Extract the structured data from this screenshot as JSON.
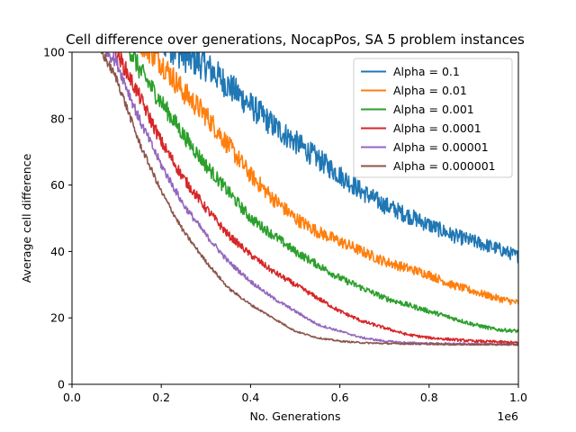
{
  "chart_data": {
    "type": "line",
    "title": "Cell difference over generations, NocapPos, SA 5 problem instances",
    "xlabel": "No. Generations",
    "ylabel": "Average cell difference",
    "x_offset_label": "1e6",
    "xlim": [
      0,
      1.0
    ],
    "ylim": [
      0,
      100
    ],
    "xticks": [
      0.0,
      0.2,
      0.4,
      0.6,
      0.8,
      1.0
    ],
    "xtick_labels": [
      "0.0",
      "0.2",
      "0.4",
      "0.6",
      "0.8",
      "1.0"
    ],
    "yticks": [
      0,
      20,
      40,
      60,
      80,
      100
    ],
    "ytick_labels": [
      "0",
      "20",
      "40",
      "60",
      "80",
      "100"
    ],
    "grid": false,
    "legend_position": "top-right",
    "series": [
      {
        "name": "Alpha = 0.1",
        "color": "#1f77b4",
        "x": [
          0.15,
          0.2,
          0.25,
          0.3,
          0.35,
          0.4,
          0.45,
          0.5,
          0.55,
          0.6,
          0.65,
          0.7,
          0.75,
          0.8,
          0.85,
          0.9,
          0.95,
          1.0
        ],
        "y": [
          112,
          104,
          99,
          96,
          90,
          84,
          78,
          73,
          68,
          63,
          58,
          54,
          51,
          48,
          45,
          43,
          41,
          38.5
        ],
        "noise": 3
      },
      {
        "name": "Alpha = 0.01",
        "color": "#ff7f0e",
        "x": [
          0.1,
          0.15,
          0.2,
          0.25,
          0.3,
          0.35,
          0.4,
          0.45,
          0.5,
          0.55,
          0.6,
          0.65,
          0.7,
          0.75,
          0.8,
          0.85,
          0.9,
          0.95,
          1.0
        ],
        "y": [
          112,
          104,
          97,
          88,
          81,
          72,
          63,
          56,
          50,
          46,
          43,
          40,
          37,
          35,
          33,
          30,
          28,
          26,
          24.5
        ],
        "noise": 2.5
      },
      {
        "name": "Alpha = 0.001",
        "color": "#2ca02c",
        "x": [
          0.1,
          0.15,
          0.2,
          0.25,
          0.3,
          0.35,
          0.4,
          0.45,
          0.5,
          0.55,
          0.6,
          0.65,
          0.7,
          0.75,
          0.8,
          0.85,
          0.9,
          0.95,
          1.0
        ],
        "y": [
          110,
          95,
          85,
          75,
          66,
          58,
          50,
          45,
          40,
          36,
          32,
          29,
          26,
          24,
          22,
          20,
          18,
          16.5,
          16
        ],
        "noise": 2
      },
      {
        "name": "Alpha = 0.0001",
        "color": "#d62728",
        "x": [
          0.05,
          0.1,
          0.15,
          0.2,
          0.25,
          0.3,
          0.35,
          0.4,
          0.45,
          0.5,
          0.55,
          0.6,
          0.65,
          0.7,
          0.75,
          0.8,
          0.85,
          0.9,
          0.95,
          1.0
        ],
        "y": [
          110,
          100,
          87,
          73,
          62,
          53,
          45,
          39,
          34,
          30,
          26,
          22,
          19,
          17,
          15,
          14,
          13.5,
          13,
          12.8,
          12.5
        ],
        "noise": 1.6
      },
      {
        "name": "Alpha = 0.00001",
        "color": "#9467bd",
        "x": [
          0.05,
          0.1,
          0.15,
          0.2,
          0.25,
          0.3,
          0.35,
          0.4,
          0.45,
          0.5,
          0.55,
          0.6,
          0.65,
          0.7,
          0.75,
          0.8,
          0.85,
          0.9,
          0.95,
          1.0
        ],
        "y": [
          105,
          97,
          80,
          66,
          54,
          45,
          37,
          31,
          26,
          22,
          18,
          16,
          14,
          13,
          12.5,
          12.3,
          12.2,
          12.1,
          12,
          12
        ],
        "noise": 1.2
      },
      {
        "name": "Alpha = 0.000001",
        "color": "#8c564b",
        "x": [
          0.05,
          0.1,
          0.15,
          0.2,
          0.25,
          0.3,
          0.35,
          0.4,
          0.45,
          0.5,
          0.55,
          0.6,
          0.65,
          0.7,
          0.75,
          0.8,
          0.85,
          0.9,
          0.95,
          1.0
        ],
        "y": [
          104,
          92,
          73,
          58,
          46,
          37,
          29,
          24,
          20,
          16,
          14,
          13,
          12.5,
          12.3,
          12.2,
          12.1,
          12,
          12,
          12,
          12
        ],
        "noise": 0.9
      }
    ]
  }
}
